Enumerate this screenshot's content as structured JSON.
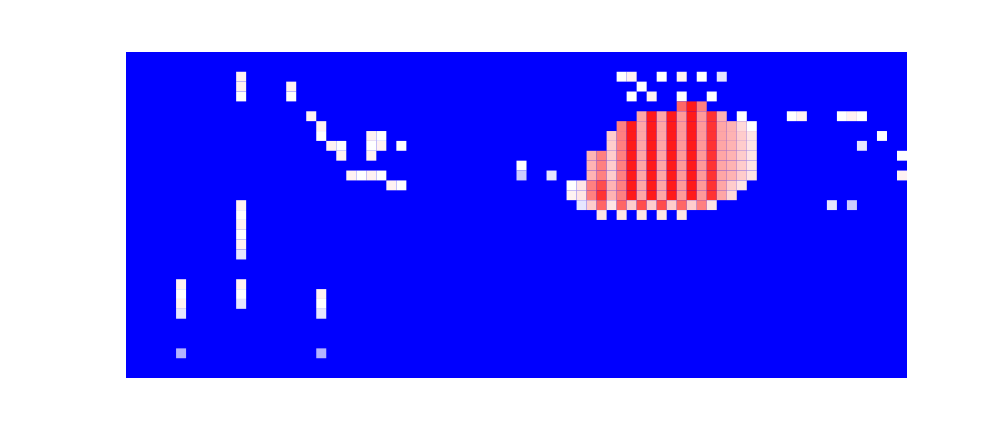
{
  "chart_data": {
    "type": "heatmap",
    "tick_labels": false,
    "grid": false,
    "xlim": [
      0,
      78
    ],
    "ylim": [
      0,
      33
    ],
    "color_range": [
      -1,
      1
    ],
    "cells": [
      [
        11,
        2,
        0.05
      ],
      [
        11,
        3,
        0.05
      ],
      [
        11,
        4,
        0
      ],
      [
        16,
        3,
        0.05
      ],
      [
        16,
        4,
        0
      ],
      [
        18,
        6,
        0.05
      ],
      [
        19,
        7,
        0.05
      ],
      [
        19,
        8,
        0
      ],
      [
        20,
        9,
        0.05
      ],
      [
        21,
        9,
        0
      ],
      [
        21,
        10,
        0.05
      ],
      [
        24,
        8,
        0.05
      ],
      [
        24,
        9,
        0
      ],
      [
        24,
        10,
        0.05
      ],
      [
        25,
        8,
        0
      ],
      [
        25,
        9,
        0.05
      ],
      [
        27,
        9,
        0
      ],
      [
        22,
        12,
        0.05
      ],
      [
        23,
        12,
        0
      ],
      [
        24,
        12,
        0.05
      ],
      [
        25,
        12,
        0
      ],
      [
        26,
        13,
        0.05
      ],
      [
        27,
        13,
        0
      ],
      [
        11,
        15,
        0.05
      ],
      [
        11,
        16,
        0
      ],
      [
        11,
        17,
        0.05
      ],
      [
        11,
        18,
        0
      ],
      [
        11,
        19,
        0.05
      ],
      [
        11,
        20,
        -0.1
      ],
      [
        5,
        23,
        0.05
      ],
      [
        5,
        24,
        0
      ],
      [
        5,
        25,
        0.05
      ],
      [
        5,
        26,
        -0.1
      ],
      [
        11,
        23,
        0.05
      ],
      [
        11,
        24,
        0
      ],
      [
        11,
        25,
        -0.1
      ],
      [
        19,
        24,
        0.05
      ],
      [
        19,
        25,
        0
      ],
      [
        19,
        26,
        -0.1
      ],
      [
        5,
        30,
        -0.3
      ],
      [
        19,
        30,
        -0.3
      ],
      [
        39,
        11,
        0
      ],
      [
        39,
        12,
        -0.2
      ],
      [
        42,
        12,
        -0.1
      ],
      [
        44,
        13,
        0
      ],
      [
        44,
        14,
        0.05
      ],
      [
        45,
        15,
        -0.1
      ],
      [
        49,
        2,
        0
      ],
      [
        50,
        2,
        0.05
      ],
      [
        51,
        3,
        0
      ],
      [
        53,
        2,
        0
      ],
      [
        55,
        2,
        0.05
      ],
      [
        57,
        2,
        0
      ],
      [
        59,
        2,
        -0.1
      ],
      [
        50,
        4,
        0
      ],
      [
        52,
        4,
        0.05
      ],
      [
        55,
        4,
        0
      ],
      [
        58,
        4,
        0
      ],
      [
        61,
        6,
        0
      ],
      [
        62,
        7,
        0
      ],
      [
        66,
        6,
        0
      ],
      [
        67,
        6,
        0.05
      ],
      [
        71,
        6,
        0
      ],
      [
        72,
        6,
        0.05
      ],
      [
        73,
        6,
        0
      ],
      [
        75,
        8,
        0
      ],
      [
        73,
        9,
        -0.1
      ],
      [
        77,
        10,
        0
      ],
      [
        77,
        12,
        0.05
      ],
      [
        70,
        15,
        -0.1
      ],
      [
        72,
        15,
        -0.2
      ],
      [
        55,
        5,
        0.6
      ],
      [
        56,
        5,
        0.9
      ],
      [
        57,
        5,
        0.5
      ],
      [
        51,
        6,
        0.35
      ],
      [
        52,
        6,
        0.9
      ],
      [
        53,
        6,
        0.35
      ],
      [
        54,
        6,
        0.9
      ],
      [
        55,
        6,
        0.4
      ],
      [
        56,
        6,
        0.9
      ],
      [
        57,
        6,
        0.4
      ],
      [
        58,
        6,
        0.8
      ],
      [
        59,
        6,
        0.3
      ],
      [
        49,
        7,
        0.5
      ],
      [
        50,
        7,
        0.9
      ],
      [
        51,
        7,
        0.35
      ],
      [
        52,
        7,
        0.9
      ],
      [
        53,
        7,
        0.35
      ],
      [
        54,
        7,
        0.9
      ],
      [
        55,
        7,
        0.4
      ],
      [
        56,
        7,
        0.9
      ],
      [
        57,
        7,
        0.4
      ],
      [
        58,
        7,
        0.8
      ],
      [
        59,
        7,
        0.35
      ],
      [
        60,
        7,
        0.3
      ],
      [
        61,
        7,
        0.15
      ],
      [
        48,
        8,
        0.2
      ],
      [
        49,
        8,
        0.5
      ],
      [
        50,
        8,
        0.9
      ],
      [
        51,
        8,
        0.35
      ],
      [
        52,
        8,
        0.9
      ],
      [
        53,
        8,
        0.35
      ],
      [
        54,
        8,
        0.9
      ],
      [
        55,
        8,
        0.4
      ],
      [
        56,
        8,
        0.9
      ],
      [
        57,
        8,
        0.4
      ],
      [
        58,
        8,
        0.8
      ],
      [
        59,
        8,
        0.35
      ],
      [
        60,
        8,
        0.3
      ],
      [
        61,
        8,
        0.2
      ],
      [
        62,
        8,
        0.1
      ],
      [
        48,
        9,
        0.2
      ],
      [
        49,
        9,
        0.5
      ],
      [
        50,
        9,
        0.9
      ],
      [
        51,
        9,
        0.35
      ],
      [
        52,
        9,
        0.9
      ],
      [
        53,
        9,
        0.35
      ],
      [
        54,
        9,
        0.9
      ],
      [
        55,
        9,
        0.4
      ],
      [
        56,
        9,
        0.9
      ],
      [
        57,
        9,
        0.4
      ],
      [
        58,
        9,
        0.8
      ],
      [
        59,
        9,
        0.35
      ],
      [
        60,
        9,
        0.3
      ],
      [
        61,
        9,
        0.2
      ],
      [
        62,
        9,
        0.1
      ],
      [
        46,
        10,
        0.3
      ],
      [
        47,
        10,
        0.5
      ],
      [
        48,
        10,
        0.2
      ],
      [
        49,
        10,
        0.5
      ],
      [
        50,
        10,
        0.9
      ],
      [
        51,
        10,
        0.35
      ],
      [
        52,
        10,
        0.9
      ],
      [
        53,
        10,
        0.35
      ],
      [
        54,
        10,
        0.9
      ],
      [
        55,
        10,
        0.4
      ],
      [
        56,
        10,
        0.9
      ],
      [
        57,
        10,
        0.4
      ],
      [
        58,
        10,
        0.8
      ],
      [
        59,
        10,
        0.35
      ],
      [
        60,
        10,
        0.3
      ],
      [
        61,
        10,
        0.2
      ],
      [
        62,
        10,
        0.1
      ],
      [
        46,
        11,
        0.3
      ],
      [
        47,
        11,
        0.5
      ],
      [
        48,
        11,
        0.2
      ],
      [
        49,
        11,
        0.5
      ],
      [
        50,
        11,
        0.9
      ],
      [
        51,
        11,
        0.35
      ],
      [
        52,
        11,
        0.9
      ],
      [
        53,
        11,
        0.35
      ],
      [
        54,
        11,
        0.9
      ],
      [
        55,
        11,
        0.4
      ],
      [
        56,
        11,
        0.9
      ],
      [
        57,
        11,
        0.4
      ],
      [
        58,
        11,
        0.8
      ],
      [
        59,
        11,
        0.35
      ],
      [
        60,
        11,
        0.3
      ],
      [
        61,
        11,
        0.2
      ],
      [
        62,
        11,
        0.1
      ],
      [
        46,
        12,
        0.3
      ],
      [
        47,
        12,
        0.5
      ],
      [
        48,
        12,
        0.2
      ],
      [
        49,
        12,
        0.5
      ],
      [
        50,
        12,
        0.9
      ],
      [
        51,
        12,
        0.35
      ],
      [
        52,
        12,
        0.9
      ],
      [
        53,
        12,
        0.35
      ],
      [
        54,
        12,
        0.9
      ],
      [
        55,
        12,
        0.4
      ],
      [
        56,
        12,
        0.9
      ],
      [
        57,
        12,
        0.4
      ],
      [
        58,
        12,
        0.8
      ],
      [
        59,
        12,
        0.35
      ],
      [
        60,
        12,
        0.3
      ],
      [
        61,
        12,
        0.2
      ],
      [
        62,
        12,
        0.1
      ],
      [
        45,
        13,
        0.1
      ],
      [
        46,
        13,
        0.5
      ],
      [
        47,
        13,
        0.7
      ],
      [
        48,
        13,
        0.3
      ],
      [
        49,
        13,
        0.5
      ],
      [
        50,
        13,
        0.9
      ],
      [
        51,
        13,
        0.35
      ],
      [
        52,
        13,
        0.9
      ],
      [
        53,
        13,
        0.35
      ],
      [
        54,
        13,
        0.9
      ],
      [
        55,
        13,
        0.4
      ],
      [
        56,
        13,
        0.9
      ],
      [
        57,
        13,
        0.4
      ],
      [
        58,
        13,
        0.8
      ],
      [
        59,
        13,
        0.35
      ],
      [
        60,
        13,
        0.2
      ],
      [
        61,
        13,
        0.1
      ],
      [
        45,
        14,
        0.1
      ],
      [
        46,
        14,
        0.5
      ],
      [
        47,
        14,
        0.8
      ],
      [
        48,
        14,
        0.3
      ],
      [
        49,
        14,
        0.5
      ],
      [
        50,
        14,
        0.9
      ],
      [
        51,
        14,
        0.35
      ],
      [
        52,
        14,
        0.9
      ],
      [
        53,
        14,
        0.35
      ],
      [
        54,
        14,
        0.9
      ],
      [
        55,
        14,
        0.4
      ],
      [
        56,
        14,
        0.9
      ],
      [
        57,
        14,
        0.4
      ],
      [
        58,
        14,
        0.8
      ],
      [
        59,
        14,
        0.35
      ],
      [
        60,
        14,
        0.15
      ],
      [
        46,
        15,
        0.2
      ],
      [
        47,
        15,
        0.6
      ],
      [
        48,
        15,
        0.1
      ],
      [
        49,
        15,
        0.6
      ],
      [
        50,
        15,
        0.2
      ],
      [
        51,
        15,
        0.7
      ],
      [
        52,
        15,
        0.2
      ],
      [
        53,
        15,
        0.7
      ],
      [
        54,
        15,
        0.2
      ],
      [
        55,
        15,
        0.6
      ],
      [
        56,
        15,
        0.2
      ],
      [
        57,
        15,
        0.5
      ],
      [
        58,
        15,
        0.1
      ],
      [
        47,
        16,
        0.1
      ],
      [
        49,
        16,
        0.1
      ],
      [
        51,
        16,
        0.1
      ],
      [
        53,
        16,
        0.1
      ],
      [
        55,
        16,
        0.1
      ]
    ]
  }
}
